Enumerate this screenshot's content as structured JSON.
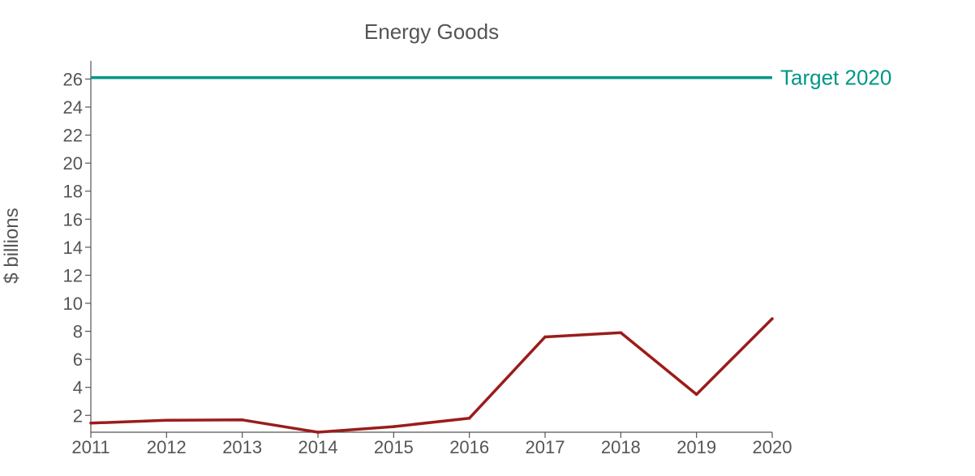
{
  "chart_data": {
    "type": "line",
    "title": "Energy Goods",
    "xlabel": "",
    "ylabel": "$ billions",
    "x": [
      2011,
      2012,
      2013,
      2014,
      2015,
      2016,
      2017,
      2018,
      2019,
      2020
    ],
    "xlim": [
      2011,
      2020
    ],
    "ylim": [
      0.8,
      27.3
    ],
    "yticks": [
      2,
      4,
      6,
      8,
      10,
      12,
      14,
      16,
      18,
      20,
      22,
      24,
      26
    ],
    "grid": false,
    "series": [
      {
        "values": [
          1.45,
          1.65,
          1.68,
          0.8,
          1.2,
          1.8,
          7.6,
          7.9,
          3.5,
          8.9
        ],
        "color": "#9b1c1c"
      }
    ],
    "reference_line": {
      "label": "Target 2020",
      "value": 26.1,
      "color": "#009688"
    }
  }
}
